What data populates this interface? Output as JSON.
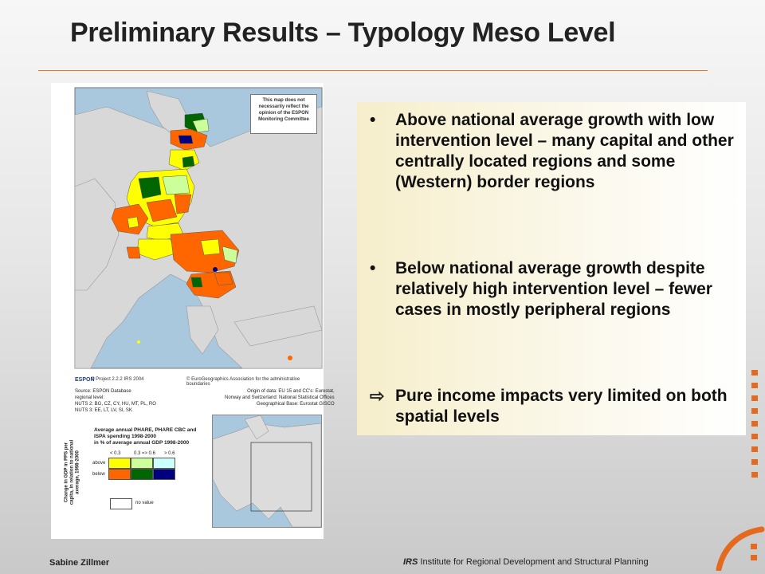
{
  "title": "Preliminary Results – Typology Meso Level",
  "map": {
    "disclaimer": "This map does not necessarily reflect the opinion of the ESPON Monitoring Committee",
    "espon_logo": "ESPON",
    "copyright_project": "© Project 2.2.2 IRS 2004",
    "copyright_geo": "© EuroGeographics Association for the administrative boundaries",
    "source_left": "Source: ESPON Database\nregional level:\nNUTS 2: BG, CZ, CY, HU, MT, PL, RO\nNUTS 3: EE, LT, LV, SI, SK",
    "source_right": "Origin of data: EU 15 and CC's: Eurostat,\nNorway and Switzerland: National Statistical Offices\nGeographical Base: Eurostat GISCO",
    "legend": {
      "vertical_label": "Change in GDP in PPS per capita, in relation to national average, 1998-2000",
      "heading": "Average annual PHARE, PHARE CBC and\nISPA spending 1998-2000\nin % of average annual GDP 1998-2000",
      "bins": [
        "< 0.3",
        "0.3 => 0.6",
        "> 0.6"
      ],
      "rows": [
        "above",
        "below"
      ],
      "colors": {
        "above": [
          "#ffff00",
          "#ccff99",
          "#ccffff"
        ],
        "below": [
          "#ff6600",
          "#006600",
          "#000080"
        ]
      },
      "no_value": "no value"
    }
  },
  "bullets": [
    {
      "marker": "•",
      "text": "Above national average growth with low intervention level – many capital and other centrally located regions and some (Western) border regions"
    },
    {
      "marker": "•",
      "text": "Below national average growth despite relatively high intervention level – fewer cases in mostly peripheral regions"
    }
  ],
  "conclusion": {
    "marker": "⇨",
    "text": "Pure income impacts very limited on both spatial levels"
  },
  "footer": {
    "author": "Sabine Zillmer",
    "irs": "IRS",
    "institute": " Institute for Regional Development and Structural Planning"
  },
  "accent_color": "#e36a1e"
}
